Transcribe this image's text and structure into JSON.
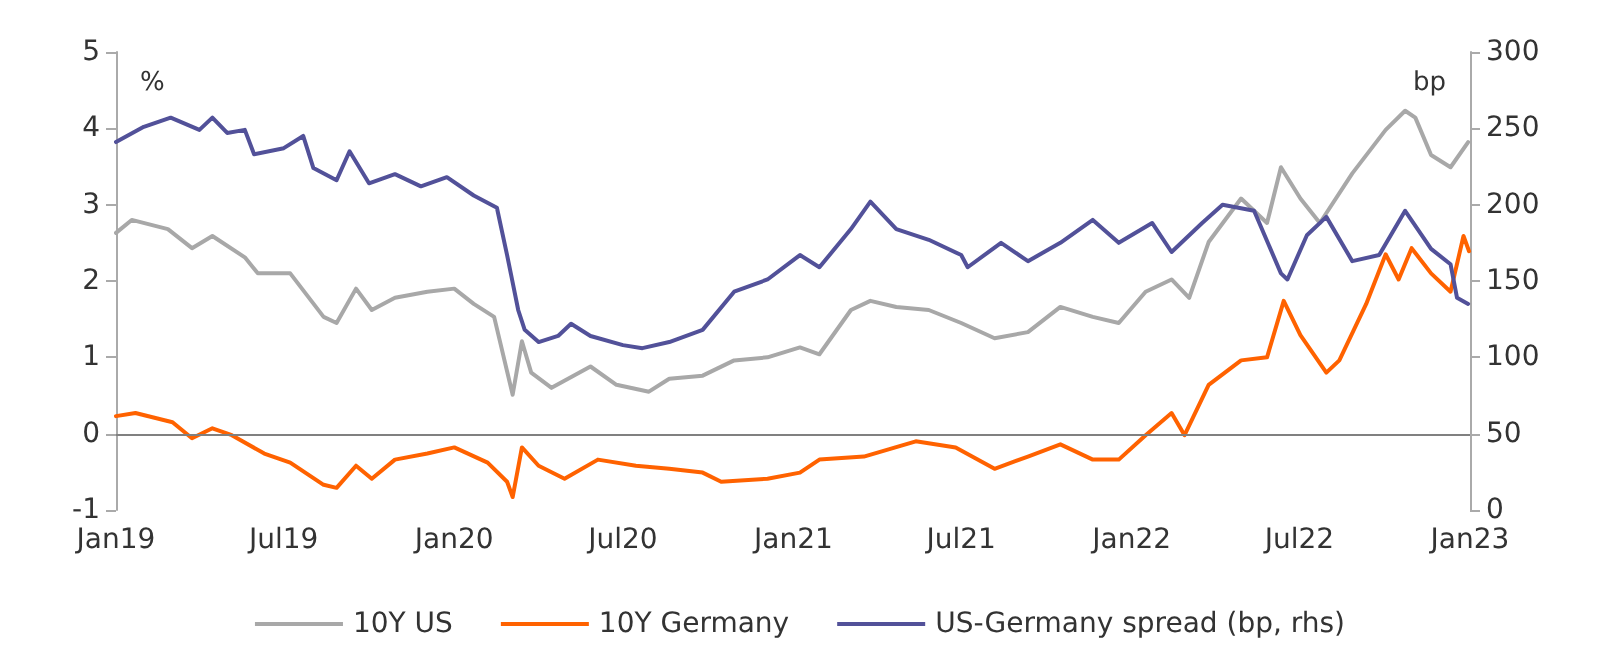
{
  "chart_data": {
    "type": "line",
    "ylabel": "%",
    "y2label": "bp",
    "legend": "bottom",
    "grid": false,
    "marker": "none",
    "line_style": "solid",
    "xlim": [
      "2019-01-01",
      "2023-01-01"
    ],
    "xticks": [
      {
        "value": "2019-01-01",
        "label": "Jan19"
      },
      {
        "value": "2019-07-01",
        "label": "Jul19"
      },
      {
        "value": "2020-01-01",
        "label": "Jan20"
      },
      {
        "value": "2020-07-01",
        "label": "Jul20"
      },
      {
        "value": "2021-01-01",
        "label": "Jan21"
      },
      {
        "value": "2021-07-01",
        "label": "Jul21"
      },
      {
        "value": "2022-01-01",
        "label": "Jan22"
      },
      {
        "value": "2022-07-01",
        "label": "Jul22"
      },
      {
        "value": "2023-01-01",
        "label": "Jan23"
      }
    ],
    "ylim": [
      -1,
      5
    ],
    "yticks": [
      -1,
      0,
      1,
      2,
      3,
      4,
      5
    ],
    "y2lim": [
      0,
      300
    ],
    "y2ticks": [
      0,
      50,
      100,
      150,
      200,
      250,
      300
    ],
    "ref_lines": [
      {
        "axis": "y",
        "value": 0,
        "color": "#808080"
      }
    ],
    "series": [
      {
        "name": "10Y US",
        "color": "#a8a8a8",
        "x": [
          "2019-01-01",
          "2019-01-18",
          "2019-02-26",
          "2019-03-24",
          "2019-04-15",
          "2019-05-20",
          "2019-06-03",
          "2019-07-08",
          "2019-08-13",
          "2019-08-27",
          "2019-09-17",
          "2019-10-04",
          "2019-10-29",
          "2019-12-03",
          "2020-01-01",
          "2020-01-22",
          "2020-02-13",
          "2020-03-04",
          "2020-03-14",
          "2020-03-24",
          "2020-04-15",
          "2020-05-27",
          "2020-06-24",
          "2020-07-29",
          "2020-08-20",
          "2020-09-25",
          "2020-10-29",
          "2020-12-04",
          "2021-01-08",
          "2021-01-29",
          "2021-03-04",
          "2021-03-25",
          "2021-04-22",
          "2021-05-27",
          "2021-07-01",
          "2021-08-06",
          "2021-09-11",
          "2021-10-16",
          "2021-11-20",
          "2021-12-18",
          "2022-01-16",
          "2022-02-13",
          "2022-03-04",
          "2022-03-25",
          "2022-04-29",
          "2022-05-27",
          "2022-06-11",
          "2022-07-02",
          "2022-07-23",
          "2022-08-27",
          "2022-10-02",
          "2022-10-23",
          "2022-11-03",
          "2022-11-20",
          "2022-12-11",
          "2022-12-30"
        ],
        "values": [
          2.63,
          2.8,
          2.68,
          2.43,
          2.59,
          2.31,
          2.1,
          2.1,
          1.53,
          1.45,
          1.9,
          1.62,
          1.78,
          1.86,
          1.9,
          1.7,
          1.53,
          0.51,
          1.21,
          0.8,
          0.6,
          0.88,
          0.64,
          0.55,
          0.72,
          0.76,
          0.96,
          1.0,
          1.13,
          1.04,
          1.62,
          1.74,
          1.66,
          1.62,
          1.45,
          1.25,
          1.33,
          1.66,
          1.53,
          1.45,
          1.86,
          2.02,
          1.78,
          2.51,
          3.08,
          2.76,
          3.49,
          3.08,
          2.76,
          3.41,
          3.98,
          4.23,
          4.14,
          3.65,
          3.49,
          3.82
        ]
      },
      {
        "name": "10Y Germany",
        "color": "#ff6200",
        "x": [
          "2019-01-01",
          "2019-01-22",
          "2019-03-03",
          "2019-03-24",
          "2019-04-15",
          "2019-05-06",
          "2019-06-10",
          "2019-07-08",
          "2019-08-13",
          "2019-08-27",
          "2019-09-17",
          "2019-10-04",
          "2019-10-29",
          "2019-12-03",
          "2020-01-01",
          "2020-02-06",
          "2020-02-27",
          "2020-03-04",
          "2020-03-14",
          "2020-04-01",
          "2020-04-29",
          "2020-06-04",
          "2020-07-15",
          "2020-08-20",
          "2020-09-25",
          "2020-10-15",
          "2020-12-04",
          "2021-01-08",
          "2021-01-29",
          "2021-03-18",
          "2021-05-13",
          "2021-06-25",
          "2021-08-06",
          "2021-09-11",
          "2021-10-16",
          "2021-11-20",
          "2021-12-18",
          "2022-01-16",
          "2022-02-13",
          "2022-02-27",
          "2022-03-25",
          "2022-04-29",
          "2022-05-27",
          "2022-06-14",
          "2022-07-02",
          "2022-07-30",
          "2022-08-13",
          "2022-09-11",
          "2022-10-02",
          "2022-10-16",
          "2022-10-30",
          "2022-11-20",
          "2022-12-11",
          "2022-12-25",
          "2022-12-31"
        ],
        "values": [
          0.23,
          0.27,
          0.15,
          -0.06,
          0.07,
          -0.02,
          -0.26,
          -0.38,
          -0.67,
          -0.71,
          -0.42,
          -0.59,
          -0.34,
          -0.26,
          -0.18,
          -0.38,
          -0.63,
          -0.83,
          -0.18,
          -0.42,
          -0.59,
          -0.34,
          -0.42,
          -0.46,
          -0.51,
          -0.63,
          -0.59,
          -0.51,
          -0.34,
          -0.3,
          -0.1,
          -0.18,
          -0.46,
          -0.3,
          -0.14,
          -0.34,
          -0.34,
          -0.02,
          0.27,
          -0.02,
          0.64,
          0.96,
          1.0,
          1.74,
          1.29,
          0.8,
          0.96,
          1.7,
          2.35,
          2.02,
          2.43,
          2.1,
          1.86,
          2.59,
          2.39
        ]
      },
      {
        "name": "US-Germany spread (bp, rhs)",
        "color": "#525199",
        "axis": "y2",
        "x": [
          "2019-01-01",
          "2019-01-31",
          "2019-03-01",
          "2019-04-01",
          "2019-04-15",
          "2019-05-01",
          "2019-05-20",
          "2019-05-30",
          "2019-07-01",
          "2019-07-22",
          "2019-08-02",
          "2019-08-27",
          "2019-09-10",
          "2019-10-01",
          "2019-10-29",
          "2019-11-26",
          "2019-12-24",
          "2020-01-22",
          "2020-02-16",
          "2020-02-27",
          "2020-03-10",
          "2020-03-17",
          "2020-04-01",
          "2020-04-22",
          "2020-05-06",
          "2020-05-27",
          "2020-07-01",
          "2020-07-22",
          "2020-08-20",
          "2020-09-25",
          "2020-10-29",
          "2020-12-04",
          "2021-01-08",
          "2021-01-29",
          "2021-03-04",
          "2021-03-25",
          "2021-04-22",
          "2021-05-27",
          "2021-07-01",
          "2021-07-08",
          "2021-08-13",
          "2021-09-11",
          "2021-10-16",
          "2021-11-20",
          "2021-12-18",
          "2022-01-23",
          "2022-02-13",
          "2022-03-18",
          "2022-04-09",
          "2022-05-13",
          "2022-06-11",
          "2022-06-18",
          "2022-07-09",
          "2022-07-30",
          "2022-08-27",
          "2022-09-25",
          "2022-10-23",
          "2022-11-20",
          "2022-12-11",
          "2022-12-18",
          "2022-12-30"
        ],
        "values": [
          241,
          251,
          257,
          249,
          257,
          247,
          249,
          233,
          237,
          245,
          224,
          216,
          235,
          214,
          220,
          212,
          218,
          206,
          198,
          167,
          131,
          118,
          110,
          114,
          122,
          114,
          108,
          106,
          110,
          118,
          143,
          151,
          167,
          159,
          184,
          202,
          184,
          177,
          167,
          159,
          175,
          163,
          175,
          190,
          175,
          188,
          169,
          188,
          200,
          196,
          155,
          151,
          180,
          192,
          163,
          167,
          196,
          171,
          161,
          139,
          135
        ]
      }
    ]
  }
}
